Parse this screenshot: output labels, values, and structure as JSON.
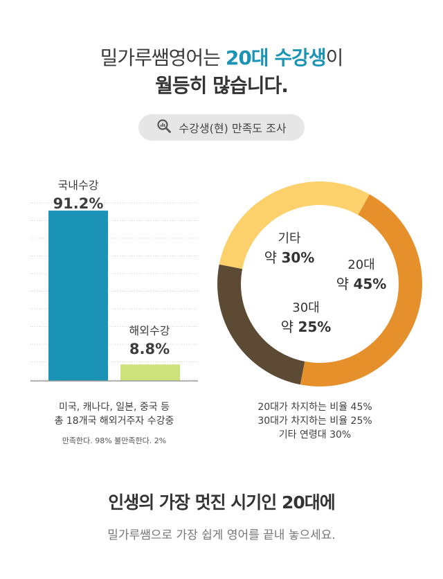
{
  "header": {
    "title_line1_prefix": "밀가루쌤영어는 ",
    "title_line1_highlight": "20대 수강생",
    "title_line1_suffix": "이",
    "title_line2": "월등히 많습니다."
  },
  "survey_badge": {
    "icon": "magnifier-chart-icon",
    "label": "수강생(현) 만족도 조사"
  },
  "colors": {
    "accent": "#1a93b7",
    "bar_domestic": "#1a93b7",
    "bar_overseas": "#cde27a",
    "donut_20s": "#e6902b",
    "donut_30s": "#5c4a35",
    "donut_other": "#fcd06a"
  },
  "chart_data": [
    {
      "type": "bar",
      "categories": [
        "국내수강",
        "해외수강"
      ],
      "values": [
        91.2,
        8.8
      ],
      "value_labels": [
        "91.2%",
        "8.8%"
      ],
      "ylim": [
        0,
        100
      ],
      "grid": true
    },
    {
      "type": "pie",
      "style": "donut",
      "labels": [
        "20대",
        "30대",
        "기타"
      ],
      "values": [
        45,
        25,
        30
      ],
      "value_labels": [
        "약 45%",
        "약 25%",
        "약 30%"
      ]
    }
  ],
  "bar_labels": [
    {
      "name": "국내수강",
      "value": "91.2%"
    },
    {
      "name": "해외수강",
      "value": "8.8%"
    }
  ],
  "donut_labels": [
    {
      "name": "20대",
      "prefix": "약 ",
      "value": "45%"
    },
    {
      "name": "30대",
      "prefix": "약 ",
      "value": "25%"
    },
    {
      "name": "기타",
      "prefix": "약 ",
      "value": "30%"
    }
  ],
  "notes_left": {
    "line1": "미국, 캐나다, 일본, 중국 등",
    "line2": "총 18개국 해외거주자 수강중",
    "line3": "만족한다. 98%   불만족한다. 2%"
  },
  "notes_right": {
    "line1": "20대가 차지하는 비율 45%",
    "line2": "30대가 차지하는 비율 25%",
    "line3": "기타 연령대 30%"
  },
  "footer": {
    "title": "인생의 가장 멋진 시기인 20대에",
    "subtitle": "밀가루쌤으로 가장 쉽게 영어를 끝내 놓으세요."
  }
}
